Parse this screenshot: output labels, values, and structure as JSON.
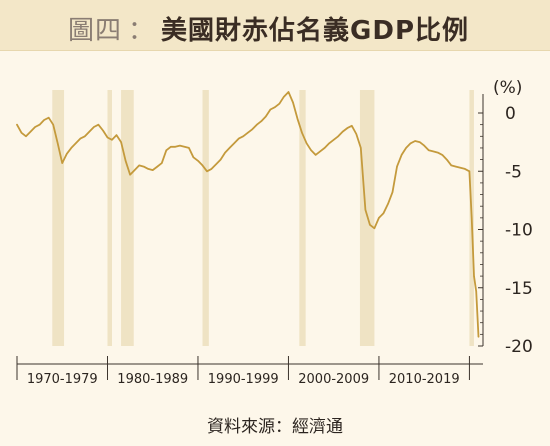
{
  "title": {
    "prefix": "圖四",
    "separator": "：",
    "main": "美國財赤佔名義GDP比例"
  },
  "source": "資料來源：經濟通",
  "colors": {
    "line": "#c49a3c",
    "recession": "#efe3c4",
    "background": "#fdf7ea",
    "title_bar": "#f3e7c8",
    "axis": "#3b332c"
  },
  "chart_data": {
    "type": "line",
    "title": "美國財赤佔名義GDP比例",
    "unit_label": "(%)",
    "ylim": [
      -20,
      0
    ],
    "yticks": [
      0,
      -5,
      -10,
      -15,
      -20
    ],
    "xlim": [
      1970,
      2021.5
    ],
    "decade_labels": [
      "1970-1979",
      "1980-1989",
      "1990-1999",
      "2000-2009",
      "2010-2019"
    ],
    "decade_starts": [
      1970,
      1980,
      1990,
      2000,
      2010,
      2020
    ],
    "recession_bands": [
      [
        1973.9,
        1975.2
      ],
      [
        1980.0,
        1980.5
      ],
      [
        1981.5,
        1982.9
      ],
      [
        1990.5,
        1991.2
      ],
      [
        2001.2,
        2001.9
      ],
      [
        2007.9,
        2009.5
      ],
      [
        2020.0,
        2020.5
      ]
    ],
    "x": [
      1970.0,
      1970.5,
      1971.0,
      1971.5,
      1972.0,
      1972.5,
      1973.0,
      1973.5,
      1974.0,
      1974.5,
      1975.0,
      1975.5,
      1976.0,
      1976.5,
      1977.0,
      1977.5,
      1978.0,
      1978.5,
      1979.0,
      1979.5,
      1980.0,
      1980.5,
      1981.0,
      1981.5,
      1982.0,
      1982.5,
      1983.0,
      1983.5,
      1984.0,
      1984.5,
      1985.0,
      1985.5,
      1986.0,
      1986.5,
      1987.0,
      1987.5,
      1988.0,
      1988.5,
      1989.0,
      1989.5,
      1990.0,
      1990.5,
      1991.0,
      1991.5,
      1992.0,
      1992.5,
      1993.0,
      1993.5,
      1994.0,
      1994.5,
      1995.0,
      1995.5,
      1996.0,
      1996.5,
      1997.0,
      1997.5,
      1998.0,
      1998.5,
      1999.0,
      1999.5,
      2000.0,
      2000.5,
      2001.0,
      2001.5,
      2002.0,
      2002.5,
      2003.0,
      2003.5,
      2004.0,
      2004.5,
      2005.0,
      2005.5,
      2006.0,
      2006.5,
      2007.0,
      2007.5,
      2008.0,
      2008.5,
      2009.0,
      2009.5,
      2010.0,
      2010.5,
      2011.0,
      2011.5,
      2012.0,
      2012.5,
      2013.0,
      2013.5,
      2014.0,
      2014.5,
      2015.0,
      2015.5,
      2016.0,
      2016.5,
      2017.0,
      2017.5,
      2018.0,
      2018.5,
      2019.0,
      2019.5,
      2020.0,
      2020.25,
      2020.5,
      2020.75,
      2021.0
    ],
    "values": [
      -1.0,
      -1.7,
      -2.0,
      -1.6,
      -1.2,
      -1.0,
      -0.6,
      -0.4,
      -1.0,
      -2.6,
      -4.3,
      -3.5,
      -3.0,
      -2.6,
      -2.2,
      -2.0,
      -1.6,
      -1.2,
      -1.0,
      -1.5,
      -2.1,
      -2.3,
      -1.9,
      -2.5,
      -4.1,
      -5.3,
      -4.9,
      -4.5,
      -4.6,
      -4.8,
      -4.9,
      -4.6,
      -4.3,
      -3.2,
      -2.9,
      -2.9,
      -2.8,
      -2.9,
      -3.0,
      -3.8,
      -4.1,
      -4.5,
      -5.0,
      -4.8,
      -4.4,
      -4.0,
      -3.4,
      -3.0,
      -2.6,
      -2.2,
      -2.0,
      -1.7,
      -1.4,
      -1.0,
      -0.7,
      -0.3,
      0.3,
      0.5,
      0.8,
      1.4,
      1.8,
      0.9,
      -0.5,
      -1.7,
      -2.6,
      -3.2,
      -3.6,
      -3.3,
      -3.0,
      -2.6,
      -2.3,
      -2.0,
      -1.6,
      -1.3,
      -1.1,
      -1.8,
      -3.0,
      -8.3,
      -9.6,
      -9.9,
      -9.0,
      -8.6,
      -7.8,
      -6.8,
      -4.6,
      -3.6,
      -3.0,
      -2.6,
      -2.4,
      -2.5,
      -2.8,
      -3.2,
      -3.3,
      -3.4,
      -3.6,
      -4.0,
      -4.5,
      -4.6,
      -4.7,
      -4.8,
      -5.0,
      -9.0,
      -14.0,
      -15.3,
      -19.2
    ]
  }
}
